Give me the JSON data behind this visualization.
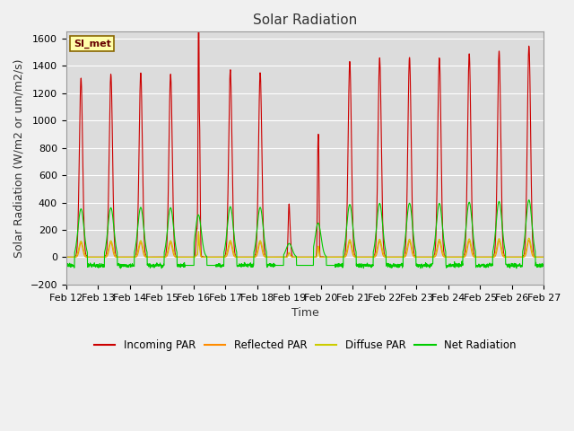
{
  "title": "Solar Radiation",
  "ylabel": "Solar Radiation (W/m2 or um/m2/s)",
  "xlabel": "Time",
  "ylim": [
    -200,
    1650
  ],
  "yticks": [
    -200,
    0,
    200,
    400,
    600,
    800,
    1000,
    1200,
    1400,
    1600
  ],
  "date_labels": [
    "Feb 12",
    "Feb 13",
    "Feb 14",
    "Feb 15",
    "Feb 16",
    "Feb 17",
    "Feb 18",
    "Feb 19",
    "Feb 20",
    "Feb 21",
    "Feb 22",
    "Feb 23",
    "Feb 24",
    "Feb 25",
    "Feb 26",
    "Feb 27"
  ],
  "n_days": 16,
  "plot_bg_color": "#dcdcdc",
  "fig_bg_color": "#f0f0f0",
  "colors": {
    "incoming": "#cc0000",
    "reflected": "#ff8c00",
    "diffuse": "#cccc00",
    "net": "#00cc00"
  },
  "legend_labels": [
    "Incoming PAR",
    "Reflected PAR",
    "Diffuse PAR",
    "Net Radiation"
  ],
  "station_label": "SI_met",
  "title_fontsize": 11,
  "axis_label_fontsize": 9,
  "tick_fontsize": 8
}
